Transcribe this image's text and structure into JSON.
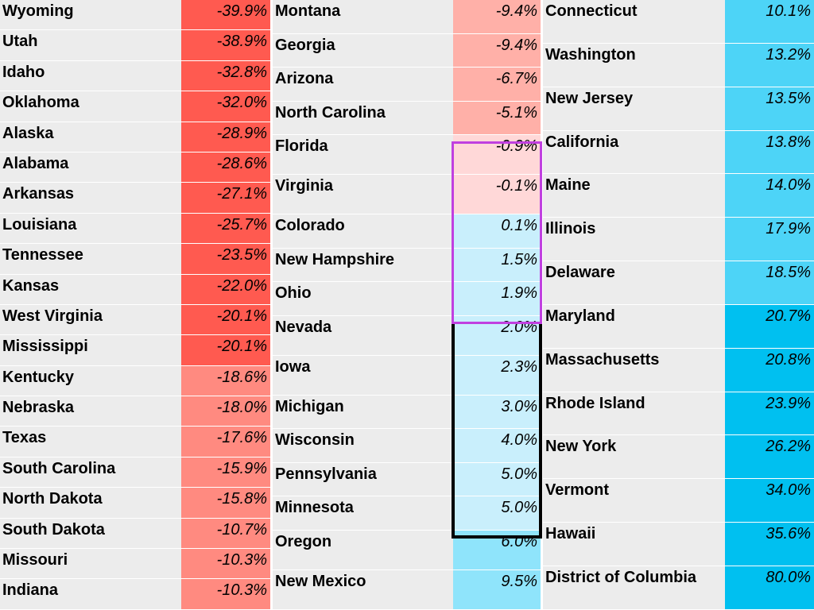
{
  "columns": [
    {
      "groups": [
        {
          "color": "#ff5a50",
          "rows": [
            [
              "Wyoming",
              "-39.9%"
            ],
            [
              "Utah",
              "-38.9%"
            ],
            [
              "Idaho",
              "-32.8%"
            ],
            [
              "Oklahoma",
              "-32.0%"
            ],
            [
              "Alaska",
              "-28.9%"
            ],
            [
              "Alabama",
              "-28.6%"
            ],
            [
              "Arkansas",
              "-27.1%"
            ],
            [
              "Louisiana",
              "-25.7%"
            ],
            [
              "Tennessee",
              "-23.5%"
            ],
            [
              "Kansas",
              "-22.0%"
            ],
            [
              "West Virginia",
              "-20.1%"
            ],
            [
              "Mississippi",
              "-20.1%"
            ]
          ]
        },
        {
          "color": "#ff8a80",
          "rows": [
            [
              "Kentucky",
              "-18.6%"
            ],
            [
              "Nebraska",
              "-18.0%"
            ],
            [
              "Texas",
              "-17.6%"
            ],
            [
              "South Carolina",
              "-15.9%"
            ],
            [
              "North Dakota",
              "-15.8%"
            ],
            [
              "South Dakota",
              "-10.7%"
            ],
            [
              "Missouri",
              "-10.3%"
            ],
            [
              "Indiana",
              "-10.3%"
            ]
          ]
        }
      ]
    },
    {
      "groups": [
        {
          "color": "#ffb0a8",
          "rows": [
            [
              "Montana",
              "-9.4%"
            ],
            [
              "Georgia",
              "-9.4%"
            ],
            [
              "Arizona",
              "-6.7%"
            ],
            [
              "North Carolina",
              "-5.1%"
            ]
          ]
        },
        {
          "color": "#ffd8d8",
          "rows": [
            [
              "Florida",
              "-0.9%"
            ],
            [
              "Virginia",
              "-0.1%"
            ]
          ]
        },
        {
          "color": "#c9effc",
          "rows": [
            [
              "Colorado",
              "0.1%"
            ],
            [
              "New Hampshire",
              "1.5%"
            ],
            [
              "Ohio",
              "1.9%"
            ],
            [
              "Nevada",
              "2.0%"
            ],
            [
              "Iowa",
              "2.3%"
            ],
            [
              "Michigan",
              "3.0%"
            ],
            [
              "Wisconsin",
              "4.0%"
            ],
            [
              "Pennsylvania",
              "5.0%"
            ],
            [
              "Minnesota",
              "5.0%"
            ]
          ]
        },
        {
          "color": "#8fe4fb",
          "rows": [
            [
              "Oregon",
              "6.0%"
            ],
            [
              "New Mexico",
              "9.5%"
            ]
          ]
        }
      ]
    },
    {
      "groups": [
        {
          "color": "#4dd4f7",
          "rows": [
            [
              "Connecticut",
              "10.1%"
            ],
            [
              "Washington",
              "13.2%"
            ],
            [
              "New Jersey",
              "13.5%"
            ],
            [
              "California",
              "13.8%"
            ],
            [
              "Maine",
              "14.0%"
            ],
            [
              "Illinois",
              "17.9%"
            ],
            [
              "Delaware",
              "18.5%"
            ]
          ]
        },
        {
          "color": "#00c0f0",
          "rows": [
            [
              "Maryland",
              "20.7%"
            ],
            [
              "Massachusetts",
              "20.8%"
            ],
            [
              "Rhode Island",
              "23.9%"
            ],
            [
              "New York",
              "26.2%"
            ],
            [
              "Vermont",
              "34.0%"
            ],
            [
              "Hawaii",
              "35.6%"
            ],
            [
              "District of Columbia",
              "80.0%"
            ]
          ]
        }
      ]
    }
  ]
}
